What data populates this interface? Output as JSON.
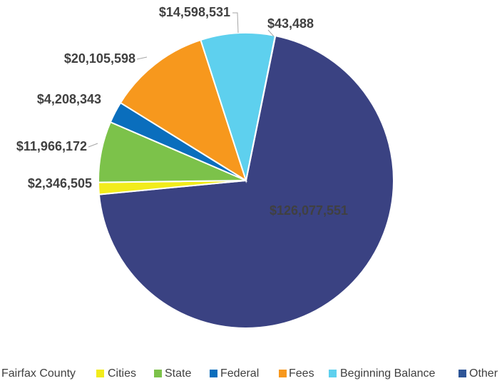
{
  "chart_data": {
    "type": "pie",
    "categories": [
      "Fairfax County",
      "Cities",
      "State",
      "Federal",
      "Fees",
      "Beginning Balance",
      "Other"
    ],
    "values": [
      126077551,
      2346505,
      11966172,
      4208343,
      20105598,
      14598531,
      43488
    ],
    "value_labels": [
      "$126,077,551",
      "$2,346,505",
      "$11,966,172",
      "$4,208,343",
      "$20,105,598",
      "$14,598,531",
      "$43,488"
    ],
    "colors": [
      "#3A4282",
      "#F2EC1C",
      "#7CC24A",
      "#0A6EBD",
      "#F7981D",
      "#5ED0EE",
      "#2E5597"
    ],
    "legend": "bottom"
  }
}
